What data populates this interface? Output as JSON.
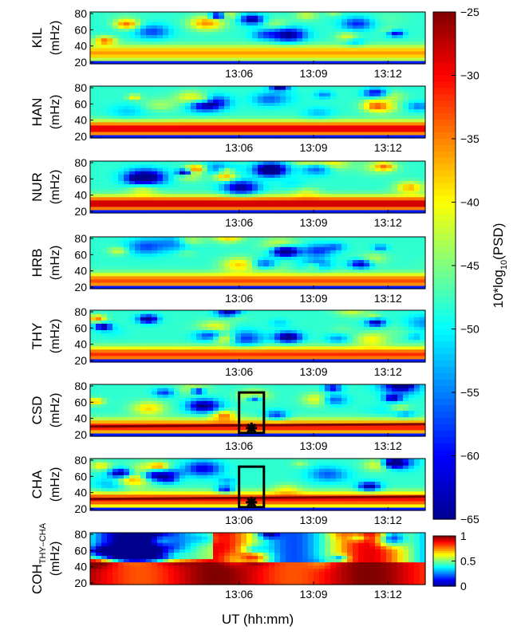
{
  "colors": {
    "psd_colormap": [
      "#00008f",
      "#0000ff",
      "#0080ff",
      "#00ffff",
      "#80ff80",
      "#ffff00",
      "#ff8000",
      "#ff0000",
      "#800000"
    ],
    "panel_border": "#000000",
    "marker": "#000000"
  },
  "chart_data": {
    "type": "heatmap",
    "xlabel": "UT (hh:mm)",
    "x_ticks": [
      "13:06",
      "13:09",
      "13:12"
    ],
    "y_ticks": [
      20,
      40,
      60,
      80
    ],
    "ylim": [
      20,
      80
    ],
    "panels": [
      {
        "name": "KIL",
        "ylabel": "(mHz)",
        "band_center_mhz": 32,
        "band_strength": 0.55,
        "seed": 11
      },
      {
        "name": "HAN",
        "ylabel": "(mHz)",
        "band_center_mhz": 30,
        "band_strength": 0.9,
        "seed": 23
      },
      {
        "name": "NUR",
        "ylabel": "(mHz)",
        "band_center_mhz": 30,
        "band_strength": 0.95,
        "seed": 37
      },
      {
        "name": "HRB",
        "ylabel": "(mHz)",
        "band_center_mhz": 28,
        "band_strength": 0.7,
        "seed": 41
      },
      {
        "name": "THY",
        "ylabel": "(mHz)",
        "band_center_mhz": 28,
        "band_strength": 0.75,
        "seed": 53
      },
      {
        "name": "CSD",
        "ylabel": "(mHz)",
        "band_center_mhz": 30,
        "band_strength": 0.8,
        "seed": 67,
        "line_mhz": 30,
        "box": {
          "t_start": "13:06",
          "t_end": "13:07",
          "f_low": 22,
          "f_high": 72
        },
        "marker": {
          "time": "13:06.5",
          "freq_mhz": 28
        }
      },
      {
        "name": "CHA",
        "ylabel": "(mHz)",
        "band_center_mhz": 32,
        "band_strength": 0.8,
        "seed": 79,
        "line_mhz": 32,
        "box": {
          "t_start": "13:06",
          "t_end": "13:07",
          "f_low": 22,
          "f_high": 72
        },
        "marker": {
          "time": "13:06.5",
          "freq_mhz": 28
        }
      },
      {
        "name": "COH",
        "name_sub": "THY–CHA",
        "ylabel": "(mHz)",
        "band_center_mhz": 35,
        "band_strength": 1.0,
        "seed": 97,
        "coherence": true
      }
    ],
    "colorbar_psd": {
      "label_main": "10*log",
      "label_sub": "10",
      "label_tail": "(PSD)",
      "range": [
        -65,
        -25
      ],
      "ticks": [
        -25,
        -30,
        -35,
        -40,
        -45,
        -50,
        -55,
        -60,
        -65
      ]
    },
    "colorbar_coh": {
      "range": [
        0,
        1
      ],
      "ticks": [
        1,
        0.5,
        0
      ]
    }
  }
}
